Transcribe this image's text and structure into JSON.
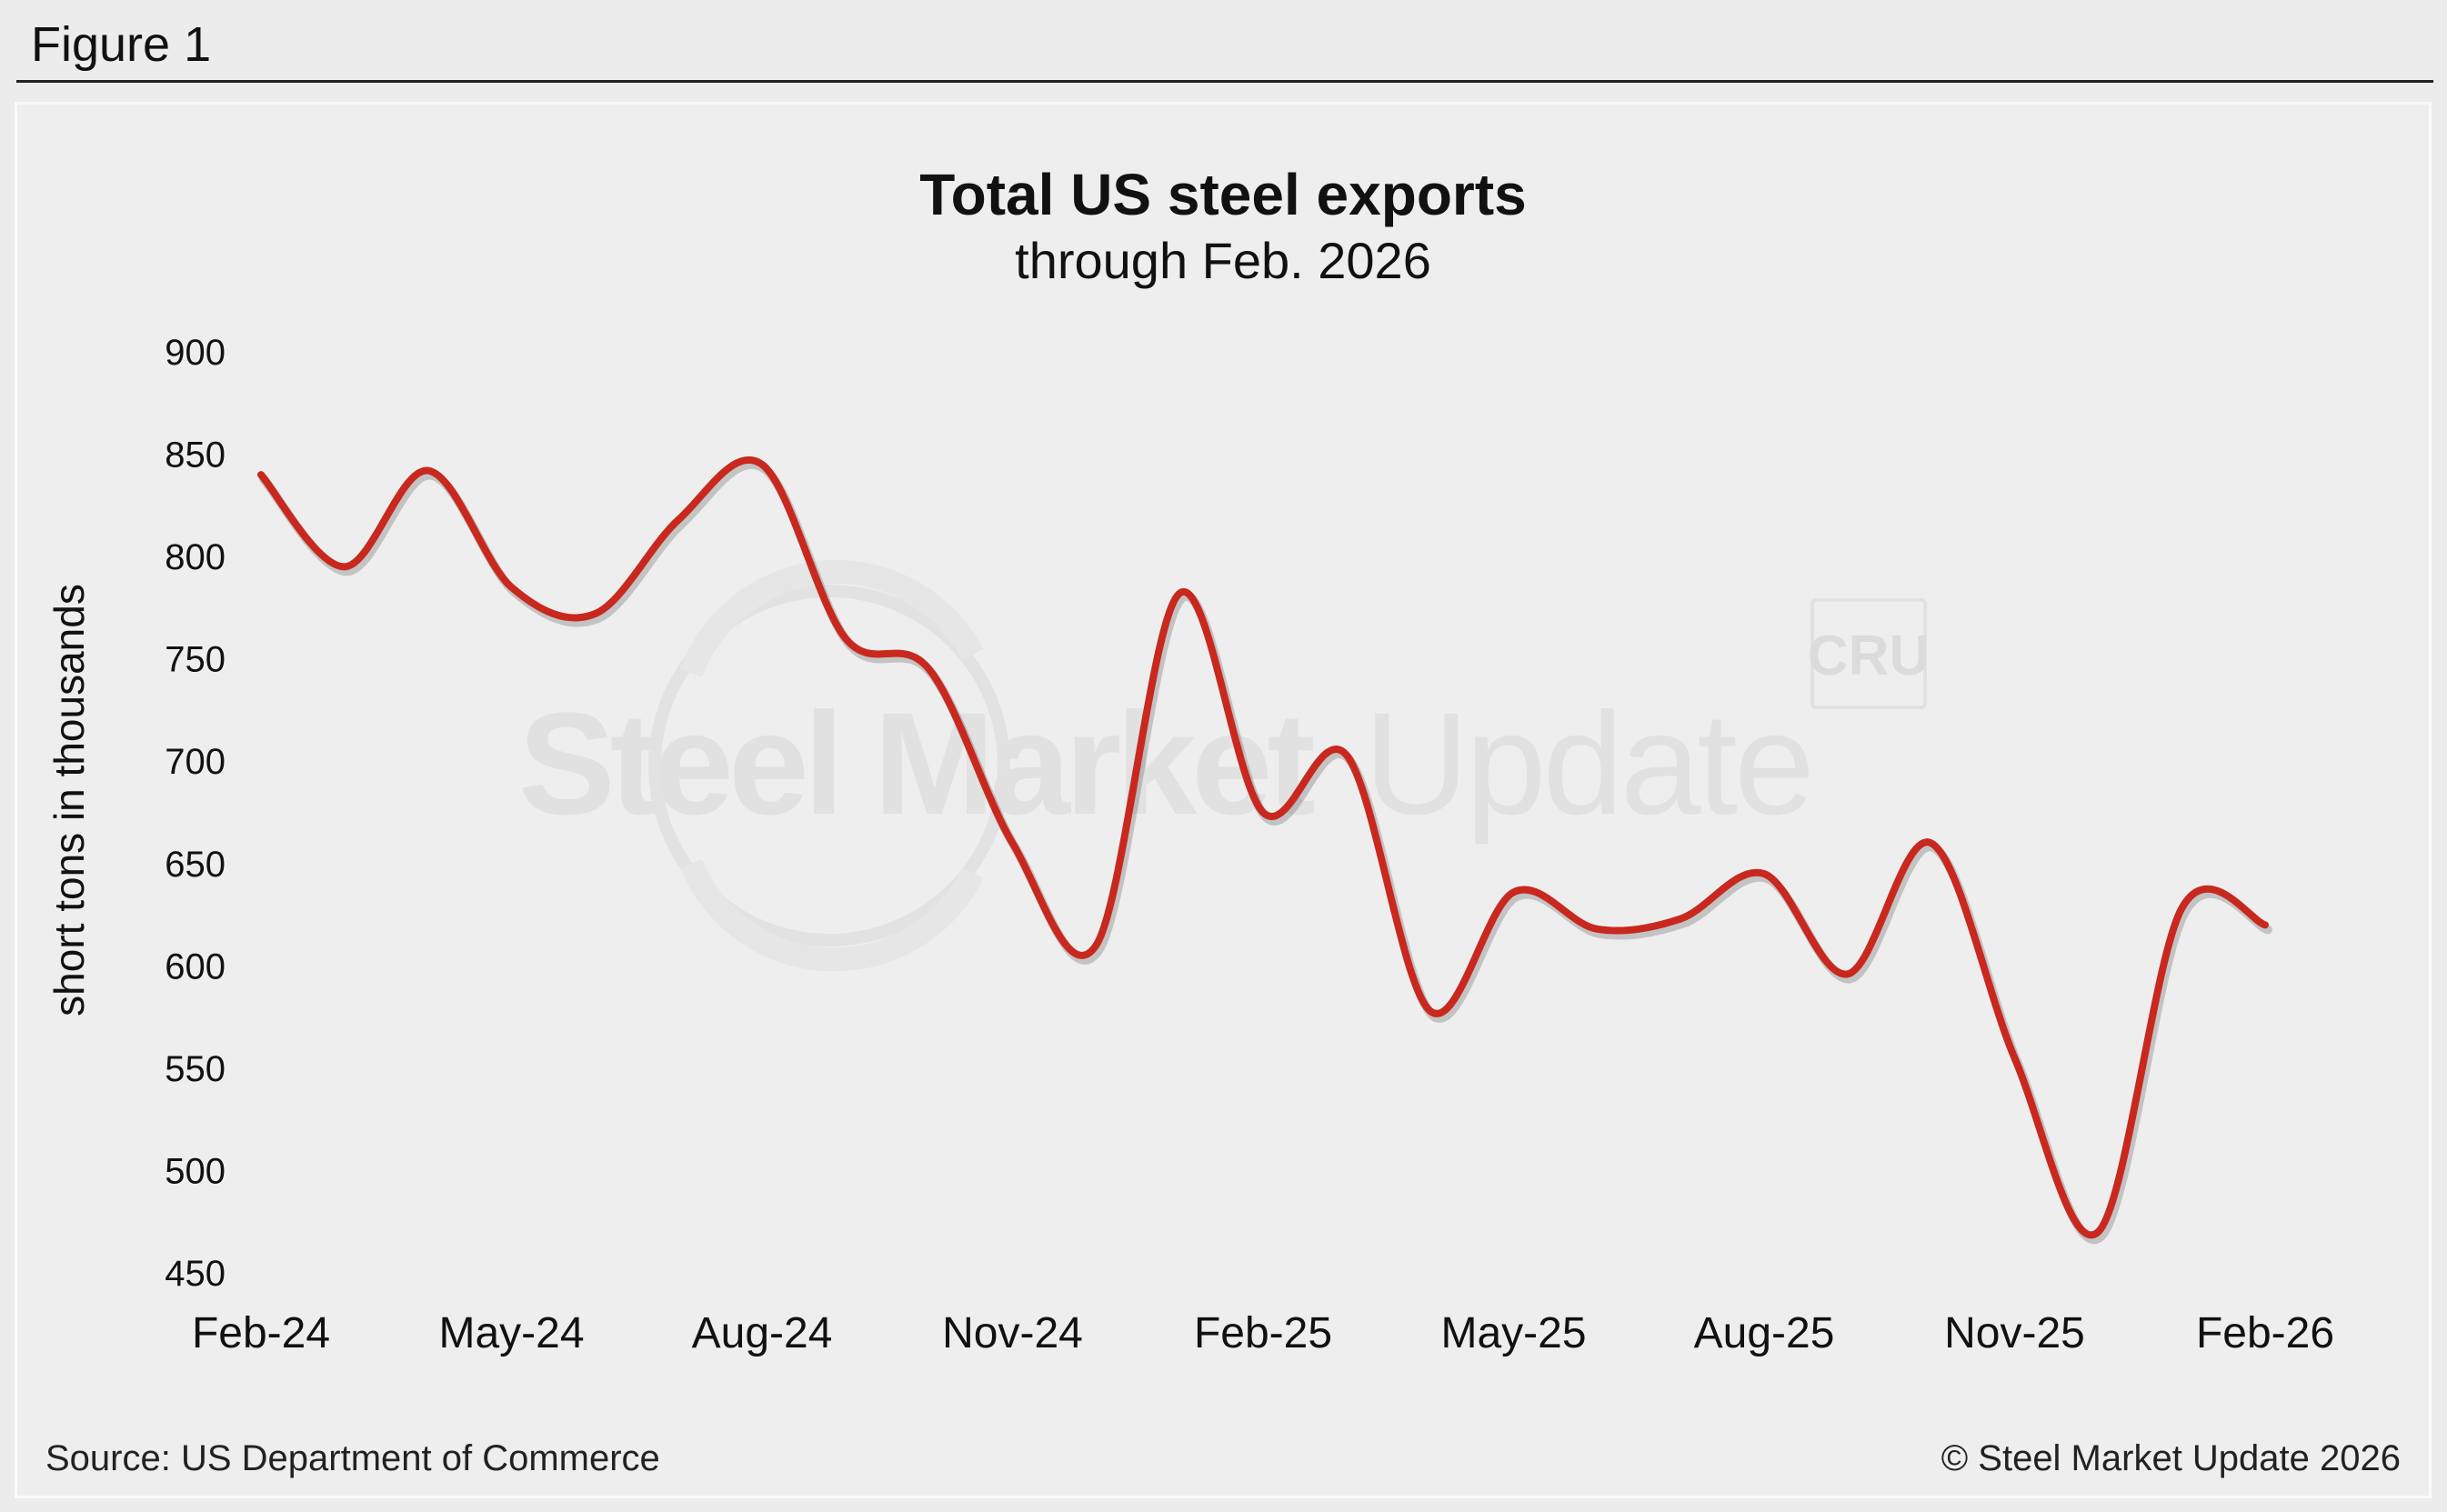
{
  "figure_label": "Figure 1",
  "footer": {
    "source": "Source: US Department of Commerce",
    "copyright": "© Steel Market Update 2026"
  },
  "watermark": {
    "logo_text_bold": "Steel Market",
    "logo_text_light": "Update",
    "badge": "CRU"
  },
  "colors": {
    "line": "#c8281e",
    "background": "#ececec",
    "text": "#111111"
  },
  "chart_data": {
    "type": "line",
    "title": "Total US steel exports",
    "subtitle": "through Feb. 2026",
    "xlabel": "",
    "ylabel": "short tons in thousands",
    "ylim": [
      450,
      900
    ],
    "yticks": [
      900,
      850,
      800,
      750,
      700,
      650,
      600,
      550,
      500,
      450
    ],
    "x_tick_labels": [
      "Feb-24",
      "May-24",
      "Aug-24",
      "Nov-24",
      "Feb-25",
      "May-25",
      "Aug-25",
      "Nov-25",
      "Feb-26"
    ],
    "grid": false,
    "legend": "none",
    "x": [
      "Feb-24",
      "Mar-24",
      "Apr-24",
      "May-24",
      "Jun-24",
      "Jul-24",
      "Aug-24",
      "Sep-24",
      "Oct-24",
      "Nov-24",
      "Dec-24",
      "Jan-25",
      "Feb-25",
      "Mar-25",
      "Apr-25",
      "May-25",
      "Jun-25",
      "Jul-25",
      "Aug-25",
      "Sep-25",
      "Oct-25",
      "Nov-25",
      "Dec-25",
      "Jan-26",
      "Feb-26"
    ],
    "series": [
      {
        "values": [
          840,
          795,
          842,
          785,
          772,
          818,
          845,
          760,
          745,
          660,
          610,
          782,
          675,
          703,
          578,
          636,
          618,
          623,
          645,
          596,
          660,
          555,
          470,
          628,
          620
        ]
      }
    ]
  }
}
